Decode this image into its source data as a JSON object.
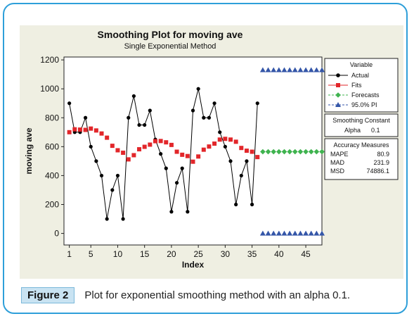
{
  "figure": {
    "label": "Figure 2",
    "caption": "Plot for exponential smoothing method with an alpha 0.1."
  },
  "colors": {
    "actual": "#000000",
    "fits": "#e2262a",
    "forecasts": "#3fb34f",
    "pi": "#3456a8",
    "background": "#efefe2"
  },
  "chart_data": {
    "type": "line",
    "title": "Smoothing Plot for moving ave",
    "subtitle": "Single Exponential Method",
    "xlabel": "Index",
    "ylabel": "moving ave",
    "xlim": [
      0,
      48
    ],
    "ylim": [
      -80,
      1220
    ],
    "xticks": [
      1,
      5,
      10,
      15,
      20,
      25,
      30,
      35,
      40,
      45
    ],
    "yticks": [
      0,
      200,
      400,
      600,
      800,
      1000,
      1200
    ],
    "legend": {
      "title": "Variable",
      "placement": "right",
      "entries": [
        "Actual",
        "Fits",
        "Forecasts",
        "95.0% PI"
      ]
    },
    "series": [
      {
        "name": "Actual",
        "x": [
          1,
          2,
          3,
          4,
          5,
          6,
          7,
          8,
          9,
          10,
          11,
          12,
          13,
          14,
          15,
          16,
          17,
          18,
          19,
          20,
          21,
          22,
          23,
          24,
          25,
          26,
          27,
          28,
          29,
          30,
          31,
          32,
          33,
          34,
          35,
          36
        ],
        "values": [
          900,
          700,
          700,
          800,
          600,
          500,
          400,
          100,
          300,
          400,
          100,
          800,
          950,
          750,
          750,
          850,
          650,
          550,
          450,
          150,
          350,
          450,
          150,
          850,
          1000,
          800,
          800,
          900,
          700,
          600,
          500,
          200,
          400,
          500,
          200,
          900
        ]
      },
      {
        "name": "Fits",
        "x": [
          1,
          2,
          3,
          4,
          5,
          6,
          7,
          8,
          9,
          10,
          11,
          12,
          13,
          14,
          15,
          16,
          17,
          18,
          19,
          20,
          21,
          22,
          23,
          24,
          25,
          26,
          27,
          28,
          29,
          30,
          31,
          32,
          33,
          34,
          35,
          36
        ],
        "values": [
          700,
          720,
          718,
          716,
          725,
          712,
          691,
          662,
          606,
          575,
          558,
          512,
          541,
          582,
          599,
          614,
          638,
          639,
          630,
          612,
          565,
          544,
          535,
          496,
          532,
          579,
          601,
          621,
          649,
          654,
          649,
          634,
          591,
          572,
          565,
          528
        ]
      },
      {
        "name": "Forecasts",
        "x": [
          37,
          38,
          39,
          40,
          41,
          42,
          43,
          44,
          45,
          46,
          47,
          48
        ],
        "values": [
          565,
          565,
          565,
          565,
          565,
          565,
          565,
          565,
          565,
          565,
          565,
          565
        ]
      },
      {
        "name": "95.0% PI",
        "x": [
          37,
          38,
          39,
          40,
          41,
          42,
          43,
          44,
          45,
          46,
          47,
          48
        ],
        "upper": [
          1130,
          1130,
          1130,
          1130,
          1130,
          1130,
          1130,
          1130,
          1130,
          1130,
          1130,
          1130
        ],
        "lower": [
          0,
          0,
          0,
          0,
          0,
          0,
          0,
          0,
          0,
          0,
          0,
          0
        ]
      }
    ],
    "boxes": [
      {
        "title": "Smoothing Constant",
        "rows": [
          [
            "Alpha",
            "0.1"
          ]
        ]
      },
      {
        "title": "Accuracy Measures",
        "rows": [
          [
            "MAPE",
            "80.9"
          ],
          [
            "MAD",
            "231.9"
          ],
          [
            "MSD",
            "74886.1"
          ]
        ]
      }
    ]
  }
}
